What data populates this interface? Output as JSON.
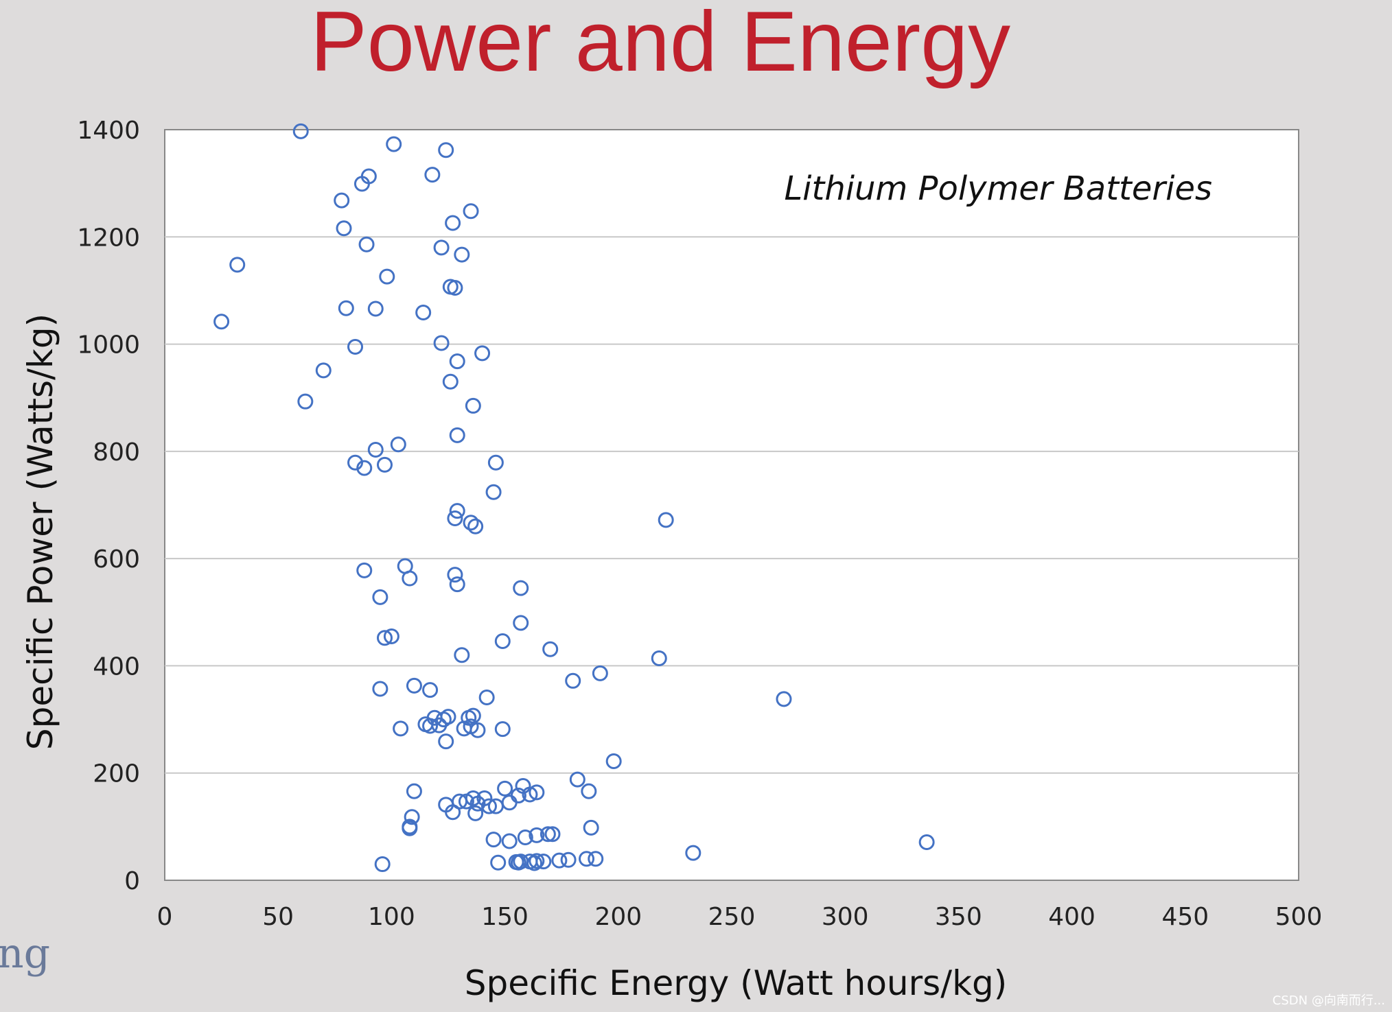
{
  "slide": {
    "title": "Power and Energy",
    "side_text": "ng",
    "watermark": "CSDN @向南而行..."
  },
  "chart_data": {
    "type": "scatter",
    "title": "Lithium Polymer Batteries",
    "xlabel": "Specific Energy (Watt hours/kg)",
    "ylabel": "Specific Power (Watts/kg)",
    "xlim": [
      0,
      500
    ],
    "ylim": [
      0,
      1400
    ],
    "xticks": [
      "0",
      "50",
      "100",
      "150",
      "200",
      "250",
      "300",
      "350",
      "400",
      "450",
      "500"
    ],
    "yticks": [
      "0",
      "200",
      "400",
      "600",
      "800",
      "1000",
      "1200",
      "1400"
    ],
    "grid": "horizontal",
    "series": [
      {
        "name": "Lithium Polymer Batteries",
        "color": "#4472c4",
        "x": [
          60,
          101,
          124,
          90,
          87,
          118,
          78,
          135,
          127,
          79,
          89,
          122,
          131,
          32,
          98,
          126,
          128,
          25,
          80,
          93,
          114,
          122,
          84,
          140,
          129,
          70,
          126,
          136,
          62,
          129,
          103,
          93,
          84,
          88,
          97,
          146,
          145,
          129,
          221,
          128,
          135,
          137,
          88,
          106,
          108,
          128,
          129,
          157,
          95,
          157,
          97,
          100,
          149,
          170,
          131,
          218,
          192,
          180,
          95,
          110,
          117,
          142,
          273,
          119,
          123,
          125,
          134,
          136,
          115,
          117,
          121,
          132,
          135,
          138,
          149,
          104,
          124,
          198,
          182,
          150,
          158,
          110,
          164,
          187,
          161,
          156,
          141,
          136,
          130,
          124,
          138,
          143,
          152,
          133,
          137,
          146,
          127,
          109,
          108,
          108,
          188,
          171,
          169,
          164,
          159,
          145,
          152,
          336,
          233,
          96,
          147,
          155,
          157,
          161,
          164,
          167,
          174,
          178,
          186,
          190,
          156,
          163
        ]
      }
    ],
    "y_points": [
      1397,
      1373,
      1362,
      1313,
      1299,
      1316,
      1268,
      1248,
      1226,
      1216,
      1186,
      1180,
      1167,
      1148,
      1126,
      1107,
      1105,
      1042,
      1067,
      1066,
      1059,
      1002,
      995,
      983,
      968,
      951,
      930,
      885,
      893,
      830,
      813,
      803,
      779,
      769,
      775,
      779,
      724,
      689,
      672,
      675,
      667,
      660,
      578,
      586,
      563,
      570,
      552,
      545,
      528,
      480,
      452,
      455,
      446,
      431,
      420,
      414,
      386,
      372,
      357,
      363,
      355,
      341,
      338,
      303,
      300,
      305,
      303,
      307,
      291,
      288,
      289,
      283,
      287,
      280,
      282,
      283,
      259,
      222,
      188,
      171,
      176,
      166,
      164,
      166,
      160,
      158,
      153,
      153,
      147,
      141,
      143,
      138,
      145,
      147,
      125,
      138,
      127,
      118,
      100,
      97,
      98,
      86,
      86,
      84,
      80,
      76,
      73,
      71,
      51,
      30,
      33,
      34,
      35,
      35,
      36,
      35,
      37,
      38,
      40,
      40,
      33,
      32
    ]
  }
}
